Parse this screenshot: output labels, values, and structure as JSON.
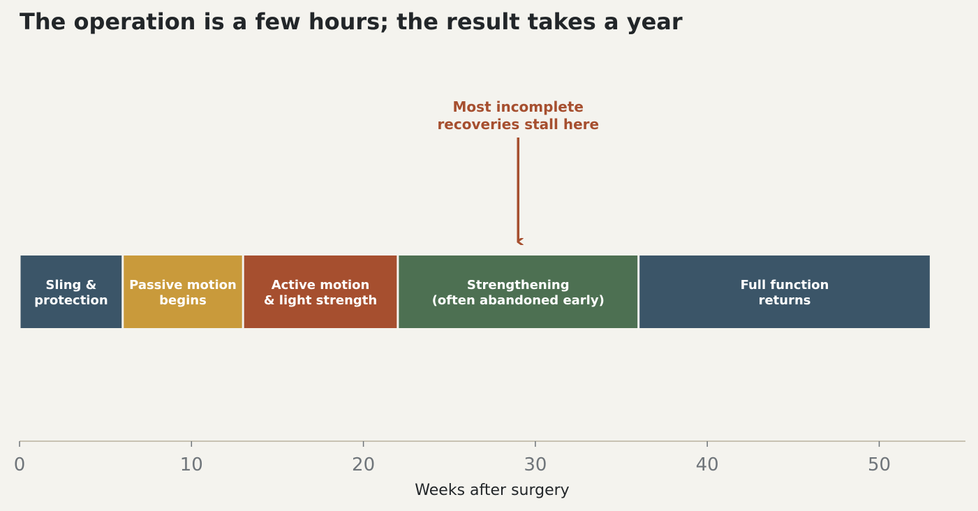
{
  "chart_data": {
    "type": "bar",
    "orientation": "horizontal-timeline",
    "title": "The operation is a few hours; the result takes a year",
    "xlabel": "Weeks after surgery",
    "xlim": [
      0,
      55
    ],
    "xticks": [
      0,
      10,
      20,
      30,
      40,
      50
    ],
    "grid": false,
    "phases": [
      {
        "label": [
          "Sling &",
          "protection"
        ],
        "start": 0,
        "end": 6,
        "color": "#3b5568"
      },
      {
        "label": [
          "Passive motion",
          "begins"
        ],
        "start": 6,
        "end": 13,
        "color": "#c99a3b"
      },
      {
        "label": [
          "Active motion",
          "& light strength"
        ],
        "start": 13,
        "end": 22,
        "color": "#a64f2f"
      },
      {
        "label": [
          "Strengthening",
          "(often abandoned early)"
        ],
        "start": 22,
        "end": 36,
        "color": "#4d7052"
      },
      {
        "label": [
          "Full function",
          "returns"
        ],
        "start": 36,
        "end": 53,
        "color": "#3b5568"
      }
    ],
    "annotation": {
      "text": [
        "Most incomplete",
        "recoveries stall here"
      ],
      "x": 29,
      "color": "#a64f2f"
    }
  }
}
